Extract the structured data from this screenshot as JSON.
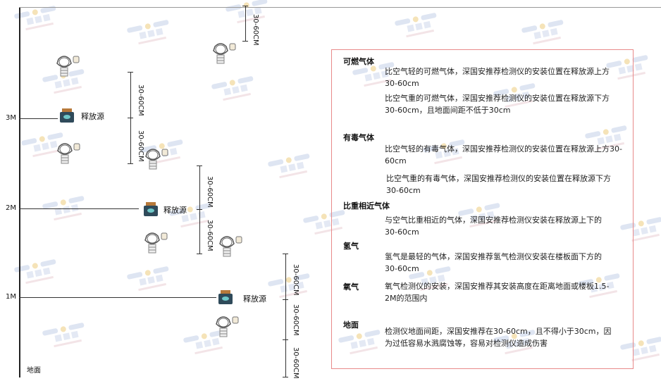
{
  "watermark": {
    "brand": "SINGOAN",
    "cn": "深国安"
  },
  "levels": {
    "m3": "3M",
    "m2": "2M",
    "m1": "1M",
    "ground": "地面"
  },
  "dimension_label": "30-60CM",
  "source_label": "释放源",
  "colors": {
    "box_border": "#e88a8a",
    "line": "#333333",
    "source": "#2f4a5a"
  },
  "legend": {
    "combustible": {
      "title": "可燃气体",
      "light": "比空气轻的可燃气体，深国安推荐检测仪的安装位置在释放源上方30-60cm",
      "heavy": "比空气重的可燃气体，深国安推荐检测仪的安装位置在释放源下方30-60cm，且地面间距不低于30cm"
    },
    "toxic": {
      "title": "有毒气体",
      "light": "比空气轻的有毒气体，深国安推荐检测仪的安装位置在释放源上方30-60cm",
      "heavy": "比空气重的有毒气体，深国安推荐检测仪的安装位置在释放源下方30-60cm"
    },
    "similar": {
      "title": "比重相近气体",
      "text": "与空气比重相近的气体，深国安推荐检测仪安装在释放源上下的30-60cm"
    },
    "hydrogen": {
      "title": "氢气",
      "text": "氢气是最轻的气体，深国安推荐氢气检测仪安装在楼板面下方的30-60cm"
    },
    "oxygen": {
      "title": "氧气",
      "text": "氧气检测仪的安装，深国安推荐其安装高度在距离地面或楼板1.5-2M的范围内"
    },
    "ground": {
      "title": "地面",
      "text": "检测仪地面间距，深国安推荐在30-60cm，且不得小于30cm，因为过低容易水溅腐蚀等，容易对检测仪造成伤害"
    }
  }
}
